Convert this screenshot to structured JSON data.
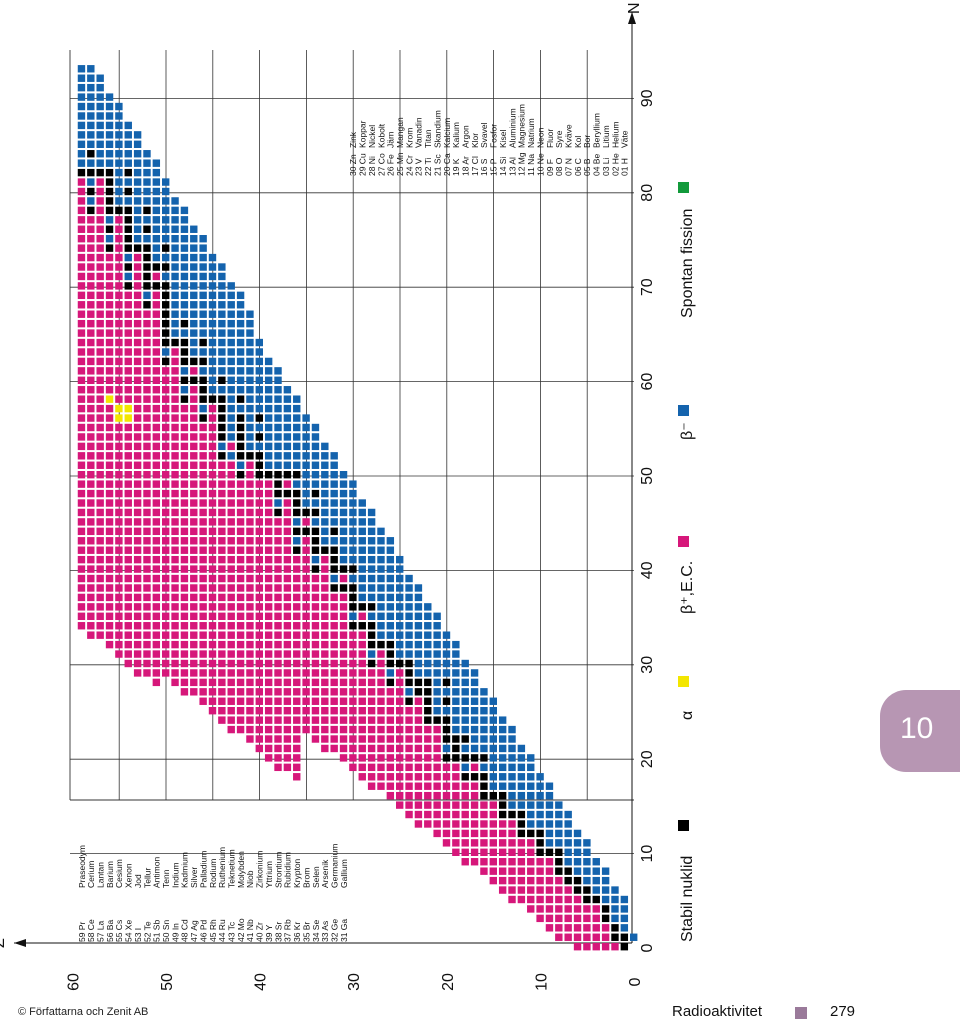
{
  "page": {
    "copyright": "© Författarna och Zenit AB",
    "chapter_title": "Radioaktivitet",
    "page_number": "279",
    "chapter_number": "10",
    "footer_color": "#9a7a9a",
    "tab_color": "#b796b3"
  },
  "chart_data": {
    "type": "heatmap",
    "xlabel": "N",
    "ylabel": "Z",
    "xlim": [
      0,
      96
    ],
    "ylim": [
      0,
      60
    ],
    "x_ticks": [
      0,
      10,
      20,
      30,
      40,
      50,
      60,
      70,
      80,
      90
    ],
    "y_ticks": [
      0,
      10,
      20,
      30,
      40,
      50,
      60
    ],
    "colors": {
      "stable": "#000000",
      "alpha": "#f3e600",
      "beta_plus_ec": "#d6177a",
      "beta_minus": "#1463ad",
      "spontaneous_fission": "#129a3b"
    },
    "legend": [
      {
        "key": "stable",
        "label": "Stabil nuklid",
        "color": "#000000"
      },
      {
        "key": "alpha",
        "label": "α",
        "color": "#f3e600"
      },
      {
        "key": "beta_plus_ec",
        "label": "β⁺,E.C.",
        "color": "#d6177a"
      },
      {
        "key": "beta_minus",
        "label": "β⁻",
        "color": "#1463ad"
      },
      {
        "key": "spontaneous_fission",
        "label": "Spontan fission",
        "color": "#129a3b"
      }
    ],
    "elements": [
      {
        "code": "01 H",
        "name": "Väte"
      },
      {
        "code": "02 He",
        "name": "Helium"
      },
      {
        "code": "03 Li",
        "name": "Litium"
      },
      {
        "code": "04 Be",
        "name": "Beryllium"
      },
      {
        "code": "05 B",
        "name": "Bor"
      },
      {
        "code": "06 C",
        "name": "Kol"
      },
      {
        "code": "07 N",
        "name": "Kväve"
      },
      {
        "code": "08 O",
        "name": "Syre"
      },
      {
        "code": "09 F",
        "name": "Fluor"
      },
      {
        "code": "10 Ne",
        "name": "Neon"
      },
      {
        "code": "11 Na",
        "name": "Natrium"
      },
      {
        "code": "12 Mg",
        "name": "Magnesium"
      },
      {
        "code": "13 Al",
        "name": "Aluminium"
      },
      {
        "code": "14 Si",
        "name": "Kisel"
      },
      {
        "code": "15 P",
        "name": "Fosfor"
      },
      {
        "code": "16 S",
        "name": "Svavel"
      },
      {
        "code": "17 Cl",
        "name": "Klor"
      },
      {
        "code": "18 Ar",
        "name": "Argon"
      },
      {
        "code": "19 K",
        "name": "Kalium"
      },
      {
        "code": "20 Ca",
        "name": "Kalcium"
      },
      {
        "code": "21 Sc",
        "name": "Skandium"
      },
      {
        "code": "22 Ti",
        "name": "Titan"
      },
      {
        "code": "23 V",
        "name": "Vanadin"
      },
      {
        "code": "24 Cr",
        "name": "Krom"
      },
      {
        "code": "25 Mn",
        "name": "Mangan"
      },
      {
        "code": "26 Fe",
        "name": "Järn"
      },
      {
        "code": "27 Co",
        "name": "Kobolt"
      },
      {
        "code": "28 Ni",
        "name": "Nickel"
      },
      {
        "code": "29 Cu",
        "name": "Koppar"
      },
      {
        "code": "30 Zn",
        "name": "Zink"
      },
      {
        "code": "31 Ga",
        "name": "Gallium"
      },
      {
        "code": "32 Ge",
        "name": "Germanium"
      },
      {
        "code": "33 As",
        "name": "Arsenik"
      },
      {
        "code": "34 Se",
        "name": "Selen"
      },
      {
        "code": "35 Br",
        "name": "Brom"
      },
      {
        "code": "36 Kr",
        "name": "Krypton"
      },
      {
        "code": "37 Rb",
        "name": "Rubidium"
      },
      {
        "code": "38 Sr",
        "name": "Strontium"
      },
      {
        "code": "39 Y",
        "name": "Yttrium"
      },
      {
        "code": "40 Zr",
        "name": "Zirkonium"
      },
      {
        "code": "41 Nb",
        "name": "Niob"
      },
      {
        "code": "42 Mo",
        "name": "Molybden"
      },
      {
        "code": "43 Tc",
        "name": "Teknetium"
      },
      {
        "code": "44 Ru",
        "name": "Ruthenium"
      },
      {
        "code": "45 Rh",
        "name": "Rodium"
      },
      {
        "code": "46 Pd",
        "name": "Palladium"
      },
      {
        "code": "47 Ag",
        "name": "Silver"
      },
      {
        "code": "48 Cd",
        "name": "Kadmium"
      },
      {
        "code": "49 In",
        "name": "Indium"
      },
      {
        "code": "50 Sn",
        "name": "Tenn"
      },
      {
        "code": "51 Sb",
        "name": "Antimon"
      },
      {
        "code": "52 Te",
        "name": "Tellur"
      },
      {
        "code": "53 I",
        "name": "Jod"
      },
      {
        "code": "54 Xe",
        "name": "Xenon"
      },
      {
        "code": "55 Cs",
        "name": "Cesium"
      },
      {
        "code": "56 Ba",
        "name": "Barium"
      },
      {
        "code": "57 La",
        "name": "Lantan"
      },
      {
        "code": "58 Ce",
        "name": "Cerium"
      },
      {
        "code": "59 Pr",
        "name": "Praseodym"
      }
    ],
    "stable_nuclides": [
      [
        1,
        0
      ],
      [
        1,
        1
      ],
      [
        2,
        1
      ],
      [
        2,
        2
      ],
      [
        3,
        3
      ],
      [
        3,
        4
      ],
      [
        4,
        5
      ],
      [
        5,
        5
      ],
      [
        5,
        6
      ],
      [
        6,
        6
      ],
      [
        6,
        7
      ],
      [
        7,
        7
      ],
      [
        7,
        8
      ],
      [
        8,
        8
      ],
      [
        8,
        9
      ],
      [
        8,
        10
      ],
      [
        9,
        10
      ],
      [
        10,
        10
      ],
      [
        10,
        11
      ],
      [
        10,
        12
      ],
      [
        11,
        12
      ],
      [
        12,
        12
      ],
      [
        12,
        13
      ],
      [
        12,
        14
      ],
      [
        13,
        14
      ],
      [
        14,
        14
      ],
      [
        14,
        15
      ],
      [
        14,
        16
      ],
      [
        15,
        16
      ],
      [
        16,
        16
      ],
      [
        16,
        17
      ],
      [
        16,
        18
      ],
      [
        16,
        20
      ],
      [
        17,
        18
      ],
      [
        17,
        20
      ],
      [
        18,
        18
      ],
      [
        18,
        20
      ],
      [
        18,
        22
      ],
      [
        19,
        20
      ],
      [
        19,
        21
      ],
      [
        19,
        22
      ],
      [
        20,
        20
      ],
      [
        20,
        22
      ],
      [
        20,
        23
      ],
      [
        20,
        24
      ],
      [
        20,
        26
      ],
      [
        20,
        28
      ],
      [
        21,
        24
      ],
      [
        22,
        24
      ],
      [
        22,
        25
      ],
      [
        22,
        26
      ],
      [
        22,
        27
      ],
      [
        22,
        28
      ],
      [
        23,
        27
      ],
      [
        23,
        28
      ],
      [
        24,
        26
      ],
      [
        24,
        28
      ],
      [
        24,
        29
      ],
      [
        24,
        30
      ],
      [
        25,
        30
      ],
      [
        26,
        28
      ],
      [
        26,
        30
      ],
      [
        26,
        31
      ],
      [
        26,
        32
      ],
      [
        27,
        32
      ],
      [
        28,
        30
      ],
      [
        28,
        32
      ],
      [
        28,
        33
      ],
      [
        28,
        34
      ],
      [
        28,
        36
      ],
      [
        29,
        34
      ],
      [
        29,
        36
      ],
      [
        30,
        34
      ],
      [
        30,
        36
      ],
      [
        30,
        37
      ],
      [
        30,
        38
      ],
      [
        30,
        40
      ],
      [
        31,
        38
      ],
      [
        31,
        40
      ],
      [
        32,
        38
      ],
      [
        32,
        40
      ],
      [
        32,
        41
      ],
      [
        32,
        42
      ],
      [
        32,
        44
      ],
      [
        33,
        42
      ],
      [
        34,
        40
      ],
      [
        34,
        42
      ],
      [
        34,
        43
      ],
      [
        34,
        44
      ],
      [
        34,
        46
      ],
      [
        34,
        48
      ],
      [
        35,
        44
      ],
      [
        35,
        46
      ],
      [
        36,
        42
      ],
      [
        36,
        44
      ],
      [
        36,
        46
      ],
      [
        36,
        47
      ],
      [
        36,
        48
      ],
      [
        36,
        50
      ],
      [
        37,
        48
      ],
      [
        37,
        50
      ],
      [
        38,
        46
      ],
      [
        38,
        48
      ],
      [
        38,
        49
      ],
      [
        38,
        50
      ],
      [
        39,
        50
      ],
      [
        40,
        50
      ],
      [
        40,
        51
      ],
      [
        40,
        52
      ],
      [
        40,
        54
      ],
      [
        40,
        56
      ],
      [
        41,
        52
      ],
      [
        42,
        50
      ],
      [
        42,
        52
      ],
      [
        42,
        53
      ],
      [
        42,
        54
      ],
      [
        42,
        55
      ],
      [
        42,
        56
      ],
      [
        42,
        58
      ],
      [
        44,
        52
      ],
      [
        44,
        54
      ],
      [
        44,
        55
      ],
      [
        44,
        56
      ],
      [
        44,
        57
      ],
      [
        44,
        58
      ],
      [
        44,
        60
      ],
      [
        45,
        58
      ],
      [
        46,
        56
      ],
      [
        46,
        58
      ],
      [
        46,
        59
      ],
      [
        46,
        60
      ],
      [
        46,
        62
      ],
      [
        46,
        64
      ],
      [
        47,
        60
      ],
      [
        47,
        62
      ],
      [
        48,
        58
      ],
      [
        48,
        60
      ],
      [
        48,
        62
      ],
      [
        48,
        63
      ],
      [
        48,
        64
      ],
      [
        48,
        66
      ],
      [
        49,
        64
      ],
      [
        50,
        62
      ],
      [
        50,
        64
      ],
      [
        50,
        65
      ],
      [
        50,
        66
      ],
      [
        50,
        67
      ],
      [
        50,
        68
      ],
      [
        50,
        69
      ],
      [
        50,
        70
      ],
      [
        50,
        72
      ],
      [
        50,
        74
      ],
      [
        51,
        70
      ],
      [
        51,
        72
      ],
      [
        52,
        68
      ],
      [
        52,
        70
      ],
      [
        52,
        71
      ],
      [
        52,
        72
      ],
      [
        52,
        73
      ],
      [
        52,
        74
      ],
      [
        52,
        76
      ],
      [
        52,
        78
      ],
      [
        53,
        74
      ],
      [
        54,
        70
      ],
      [
        54,
        72
      ],
      [
        54,
        74
      ],
      [
        54,
        75
      ],
      [
        54,
        76
      ],
      [
        54,
        77
      ],
      [
        54,
        78
      ],
      [
        54,
        80
      ],
      [
        54,
        82
      ],
      [
        55,
        78
      ],
      [
        56,
        74
      ],
      [
        56,
        76
      ],
      [
        56,
        78
      ],
      [
        56,
        79
      ],
      [
        56,
        80
      ],
      [
        56,
        81
      ],
      [
        56,
        82
      ],
      [
        57,
        82
      ],
      [
        58,
        78
      ],
      [
        58,
        80
      ],
      [
        58,
        82
      ],
      [
        58,
        84
      ],
      [
        59,
        82
      ]
    ],
    "alpha_emitters": [
      [
        56,
        58
      ],
      [
        55,
        57
      ],
      [
        54,
        57
      ],
      [
        55,
        56
      ],
      [
        54,
        56
      ]
    ],
    "beta_plus_ec_region": {
      "z_range": [
        1,
        59
      ],
      "n_min_rule": "roughly 0.8 * Z - 6",
      "n_max_rule": "stable line"
    },
    "beta_minus_region": {
      "z_range": [
        0,
        59
      ],
      "n_min_rule": "stable line",
      "n_max_rule": "roughly 1.55 * Z + 2"
    }
  }
}
